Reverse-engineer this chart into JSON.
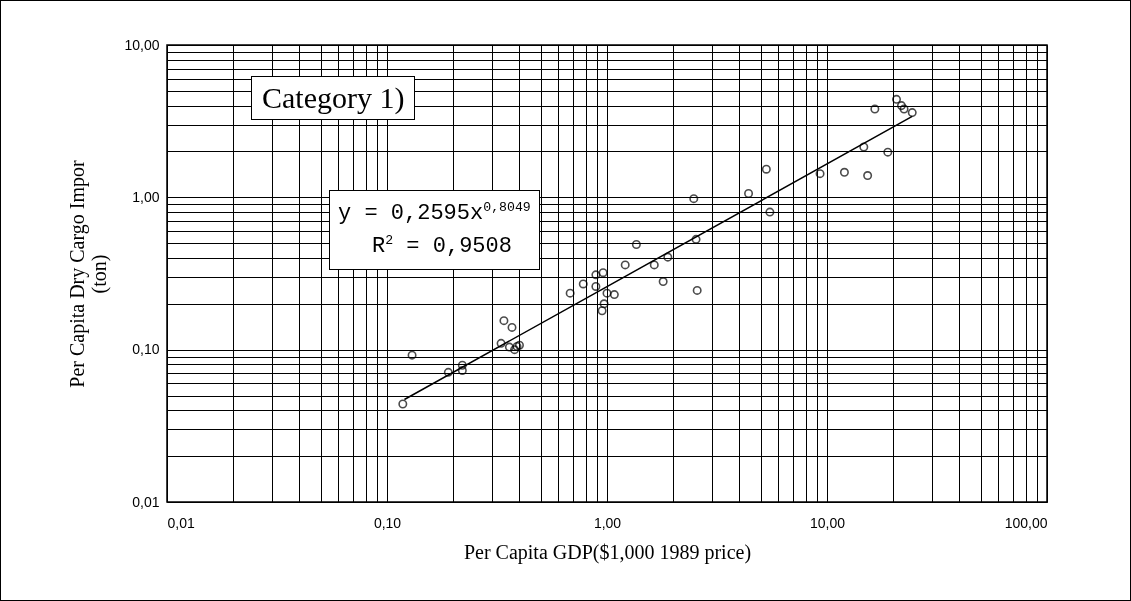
{
  "chart_data": {
    "type": "scatter",
    "xlabel": "Per Capita GDP($1,000 1989 price)",
    "ylabel": "Per Capita Dry Cargo Impor\n(ton)",
    "log": "xy",
    "grid": true,
    "marker": "circle",
    "xlim": [
      0.01,
      100
    ],
    "ylim": [
      0.01,
      10
    ],
    "xticks": [
      {
        "value": 0.01,
        "label": "0,01"
      },
      {
        "value": 0.1,
        "label": "0,10"
      },
      {
        "value": 1,
        "label": "1,00"
      },
      {
        "value": 10,
        "label": "10,00"
      },
      {
        "value": 100,
        "label": "100,00"
      }
    ],
    "yticks": [
      {
        "value": 0.01,
        "label": "0,01"
      },
      {
        "value": 0.1,
        "label": "0,10"
      },
      {
        "value": 1,
        "label": "1,00"
      },
      {
        "value": 10,
        "label": "10,00"
      }
    ],
    "annotations": [
      "Category 1)",
      "y = 0,2595x$^{0,8049}$",
      "R$^{2}$ = 0,9508"
    ],
    "series": [
      {
        "color": "#000000",
        "x": [
          0.118,
          0.13,
          0.19,
          0.22,
          0.22,
          0.33,
          0.34,
          0.37,
          0.36,
          0.38,
          0.39,
          0.4,
          0.68,
          0.78,
          0.89,
          0.89,
          0.96,
          0.95,
          0.97,
          1.0,
          1.08,
          1.21,
          1.36,
          1.64,
          1.8,
          1.89,
          2.48,
          2.54,
          2.57,
          4.4,
          5.3,
          5.5,
          9.3,
          12.0,
          14.7,
          15.3,
          18.9,
          16.5,
          20.7,
          21.8,
          22.4,
          24.4
        ],
        "values": [
          0.044,
          0.092,
          0.071,
          0.079,
          0.073,
          0.11,
          0.155,
          0.14,
          0.104,
          0.1,
          0.105,
          0.107,
          0.235,
          0.27,
          0.31,
          0.26,
          0.32,
          0.18,
          0.2,
          0.235,
          0.23,
          0.36,
          0.49,
          0.36,
          0.28,
          0.405,
          0.98,
          0.53,
          0.245,
          1.06,
          1.53,
          0.8,
          1.43,
          1.46,
          2.14,
          1.39,
          1.98,
          3.8,
          4.4,
          4.0,
          3.8,
          3.6
        ]
      },
      {
        "type": "line",
        "color": "#000000",
        "marker": "none",
        "x": [
          0.12,
          1,
          24.4
        ],
        "values": [
          0.0471,
          0.2595,
          3.4
        ]
      }
    ]
  }
}
